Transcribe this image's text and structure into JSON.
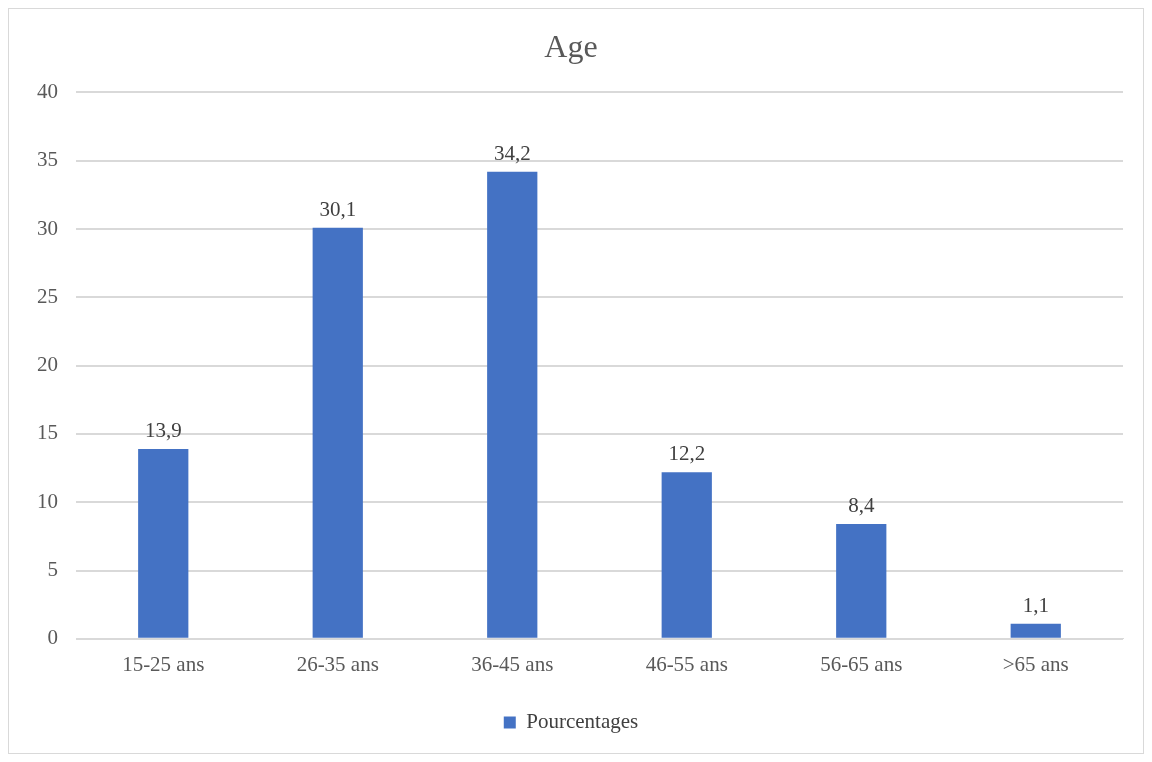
{
  "chart_data": {
    "type": "bar",
    "title": "Age",
    "categories": [
      "15-25 ans",
      "26-35 ans",
      "36-45 ans",
      "46-55 ans",
      "56-65 ans",
      ">65 ans"
    ],
    "series": [
      {
        "name": "Pourcentages",
        "color": "#4472c4",
        "values": [
          13.9,
          30.1,
          34.2,
          12.2,
          8.4,
          1.1
        ],
        "value_labels": [
          "13,9",
          "30,1",
          "34,2",
          "12,2",
          "8,4",
          "1,1"
        ]
      }
    ],
    "ylim": [
      0,
      40
    ],
    "yticks": [
      0,
      5,
      10,
      15,
      20,
      25,
      30,
      35,
      40
    ],
    "grid": "y",
    "legend": "bottom"
  }
}
